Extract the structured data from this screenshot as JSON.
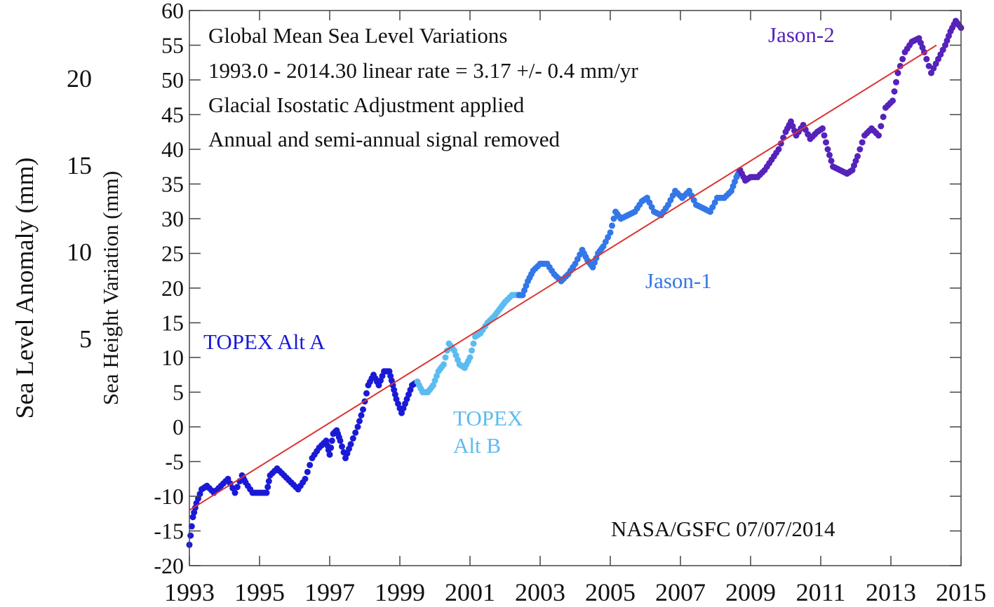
{
  "chart_data": {
    "type": "scatter",
    "title_lines": [
      "Global Mean Sea Level Variations",
      "1993.0 - 2014.30 linear rate  = 3.17 +/- 0.4 mm/yr",
      "Glacial Isostatic Adjustment applied",
      "Annual and semi-annual signal removed"
    ],
    "credit": "NASA/GSFC  07/07/2014",
    "ylabel": "Sea Height Variation (mm)",
    "ylabel_outer": "Sea Level Anomaly (mm)",
    "xlim": [
      1993,
      2015
    ],
    "ylim": [
      -20,
      60
    ],
    "x_ticks": [
      "1993",
      "1995",
      "1997",
      "1999",
      "2001",
      "2003",
      "2005",
      "2007",
      "2009",
      "2011",
      "2013",
      "2015"
    ],
    "y_ticks": [
      "-20",
      "-15",
      "-10",
      "-5",
      "0",
      "5",
      "10",
      "15",
      "20",
      "25",
      "30",
      "35",
      "40",
      "45",
      "50",
      "55",
      "60"
    ],
    "y_ticks_outer": [
      "5",
      "10",
      "15",
      "20"
    ],
    "trend": {
      "x": [
        1993.0,
        2014.3
      ],
      "y": [
        -12.0,
        55.0
      ],
      "color": "#dd3333"
    },
    "series": [
      {
        "name": "TOPEX Alt A",
        "label_lines": [
          "TOPEX Alt A"
        ],
        "color": "#1a1ad6",
        "points": [
          [
            1993.0,
            -17
          ],
          [
            1993.1,
            -13
          ],
          [
            1993.2,
            -11
          ],
          [
            1993.35,
            -9
          ],
          [
            1993.5,
            -8.5
          ],
          [
            1993.7,
            -9.5
          ],
          [
            1993.9,
            -8.5
          ],
          [
            1994.1,
            -7.5
          ],
          [
            1994.3,
            -9.5
          ],
          [
            1994.5,
            -7
          ],
          [
            1994.6,
            -8
          ],
          [
            1994.8,
            -9.5
          ],
          [
            1995.0,
            -9.5
          ],
          [
            1995.2,
            -9.5
          ],
          [
            1995.3,
            -7
          ],
          [
            1995.5,
            -6
          ],
          [
            1995.7,
            -7
          ],
          [
            1995.9,
            -8
          ],
          [
            1996.1,
            -9
          ],
          [
            1996.3,
            -7.5
          ],
          [
            1996.5,
            -4.5
          ],
          [
            1996.7,
            -3
          ],
          [
            1996.9,
            -2
          ],
          [
            1997.0,
            -4
          ],
          [
            1997.1,
            -1
          ],
          [
            1997.2,
            -0.5
          ],
          [
            1997.3,
            -2
          ],
          [
            1997.45,
            -4.5
          ],
          [
            1997.6,
            -2.5
          ],
          [
            1997.8,
            0
          ],
          [
            1997.95,
            2.5
          ],
          [
            1998.1,
            6
          ],
          [
            1998.25,
            7.5
          ],
          [
            1998.4,
            6
          ],
          [
            1998.55,
            8
          ],
          [
            1998.7,
            8
          ],
          [
            1998.8,
            6
          ],
          [
            1998.9,
            4
          ],
          [
            1999.05,
            2
          ],
          [
            1999.2,
            4
          ],
          [
            1999.35,
            6
          ],
          [
            1999.5,
            6.5
          ]
        ]
      },
      {
        "name": "TOPEX Alt B",
        "label_lines": [
          "TOPEX",
          "Alt B"
        ],
        "color": "#5bbcf0",
        "points": [
          [
            1999.5,
            6.5
          ],
          [
            1999.65,
            5
          ],
          [
            1999.8,
            5
          ],
          [
            1999.95,
            6
          ],
          [
            2000.1,
            8
          ],
          [
            2000.25,
            9
          ],
          [
            2000.4,
            12
          ],
          [
            2000.55,
            11
          ],
          [
            2000.7,
            9
          ],
          [
            2000.85,
            8.5
          ],
          [
            2001.0,
            10
          ],
          [
            2001.15,
            13
          ],
          [
            2001.3,
            13.5
          ],
          [
            2001.5,
            15
          ],
          [
            2001.7,
            16
          ],
          [
            2001.85,
            17
          ],
          [
            2002.0,
            18
          ],
          [
            2002.2,
            19
          ],
          [
            2002.4,
            19
          ]
        ]
      },
      {
        "name": "Jason-1",
        "label_lines": [
          "Jason-1"
        ],
        "color": "#3377e8",
        "points": [
          [
            2002.4,
            19
          ],
          [
            2002.5,
            19
          ],
          [
            2002.65,
            21
          ],
          [
            2002.8,
            22.5
          ],
          [
            2003.0,
            23.5
          ],
          [
            2003.2,
            23.5
          ],
          [
            2003.4,
            22
          ],
          [
            2003.6,
            21
          ],
          [
            2003.8,
            22
          ],
          [
            2004.0,
            23.5
          ],
          [
            2004.2,
            25.5
          ],
          [
            2004.35,
            24
          ],
          [
            2004.5,
            23
          ],
          [
            2004.65,
            25
          ],
          [
            2004.8,
            26
          ],
          [
            2005.0,
            28
          ],
          [
            2005.15,
            31
          ],
          [
            2005.3,
            30
          ],
          [
            2005.5,
            30.5
          ],
          [
            2005.7,
            31
          ],
          [
            2005.9,
            32.5
          ],
          [
            2006.05,
            33
          ],
          [
            2006.25,
            31
          ],
          [
            2006.45,
            30.5
          ],
          [
            2006.65,
            32
          ],
          [
            2006.85,
            34
          ],
          [
            2007.05,
            33
          ],
          [
            2007.25,
            34
          ],
          [
            2007.45,
            32
          ],
          [
            2007.65,
            31.5
          ],
          [
            2007.85,
            31
          ],
          [
            2008.05,
            33
          ],
          [
            2008.25,
            33
          ],
          [
            2008.45,
            34
          ],
          [
            2008.6,
            36
          ],
          [
            2008.7,
            37
          ]
        ]
      },
      {
        "name": "Jason-2",
        "label_lines": [
          "Jason-2"
        ],
        "color": "#5522bb",
        "points": [
          [
            2008.7,
            37
          ],
          [
            2008.85,
            35.5
          ],
          [
            2009.0,
            36
          ],
          [
            2009.2,
            36
          ],
          [
            2009.4,
            37
          ],
          [
            2009.6,
            38.5
          ],
          [
            2009.8,
            40
          ],
          [
            2010.0,
            42.5
          ],
          [
            2010.15,
            44
          ],
          [
            2010.3,
            42
          ],
          [
            2010.5,
            43.5
          ],
          [
            2010.7,
            41.5
          ],
          [
            2010.9,
            42.5
          ],
          [
            2011.05,
            43
          ],
          [
            2011.2,
            40
          ],
          [
            2011.35,
            37.5
          ],
          [
            2011.55,
            37
          ],
          [
            2011.75,
            36.5
          ],
          [
            2011.9,
            37
          ],
          [
            2012.05,
            39
          ],
          [
            2012.25,
            42
          ],
          [
            2012.45,
            43
          ],
          [
            2012.65,
            42
          ],
          [
            2012.85,
            46
          ],
          [
            2013.05,
            47
          ],
          [
            2013.2,
            51
          ],
          [
            2013.4,
            54
          ],
          [
            2013.6,
            55.5
          ],
          [
            2013.8,
            56
          ],
          [
            2013.95,
            54
          ],
          [
            2014.15,
            51
          ],
          [
            2014.35,
            53
          ],
          [
            2014.55,
            55
          ],
          [
            2014.7,
            57
          ],
          [
            2014.85,
            58.5
          ],
          [
            2015.0,
            57.5
          ]
        ]
      }
    ]
  }
}
